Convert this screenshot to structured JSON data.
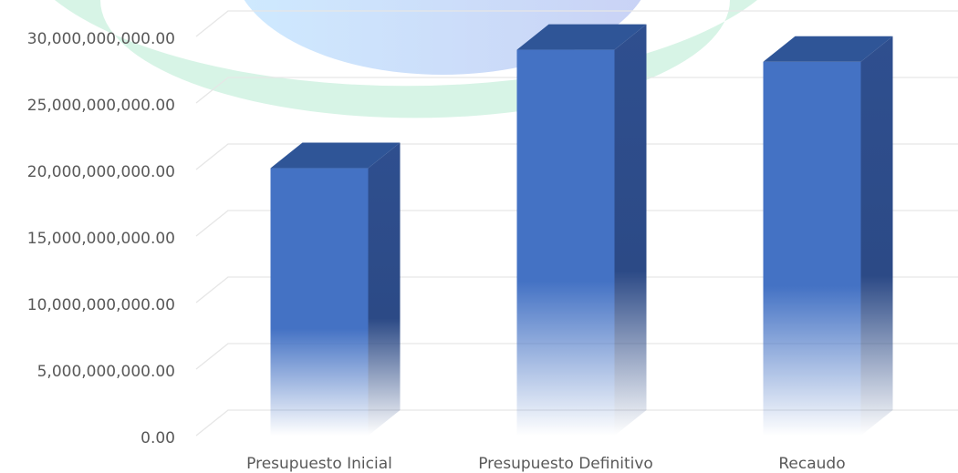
{
  "chart_data": {
    "type": "bar3d",
    "categories": [
      "Presupuesto Inicial",
      "Presupuesto Definitivo",
      "Recaudo"
    ],
    "values": [
      20100000000,
      29000000000,
      28100000000
    ],
    "color": "#4472c4",
    "ylim": [
      0,
      30000000000
    ],
    "yticks": [
      {
        "value": 0,
        "label": "0.00"
      },
      {
        "value": 5000000000,
        "label": "5,000,000,000.00"
      },
      {
        "value": 10000000000,
        "label": "10,000,000,000.00"
      },
      {
        "value": 15000000000,
        "label": "15,000,000,000.00"
      },
      {
        "value": 20000000000,
        "label": "20,000,000,000.00"
      },
      {
        "value": 25000000000,
        "label": "25,000,000,000.00"
      },
      {
        "value": 30000000000,
        "label": "30,000,000,000.00"
      }
    ],
    "grid": true
  }
}
